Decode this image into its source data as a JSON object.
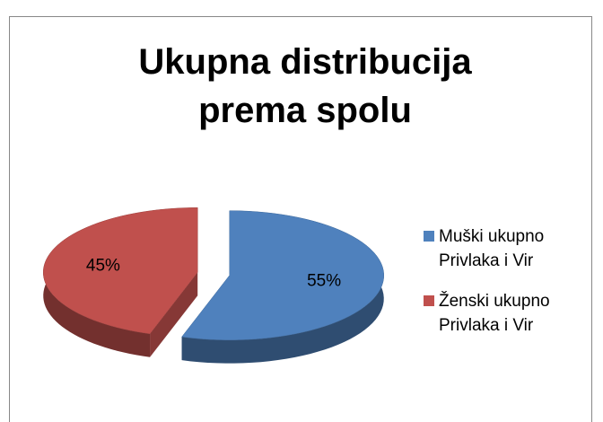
{
  "chart_data": {
    "type": "pie",
    "title": "Ukupna distribucija prema spolu",
    "categories": [
      "Muški ukupno Privlaka i Vir",
      "Ženski ukupno Privlaka i Vir"
    ],
    "values": [
      55,
      45
    ],
    "value_labels": [
      "55%",
      "45%"
    ],
    "colors": [
      "#4f81bd",
      "#c0504d"
    ],
    "legend": "right"
  }
}
